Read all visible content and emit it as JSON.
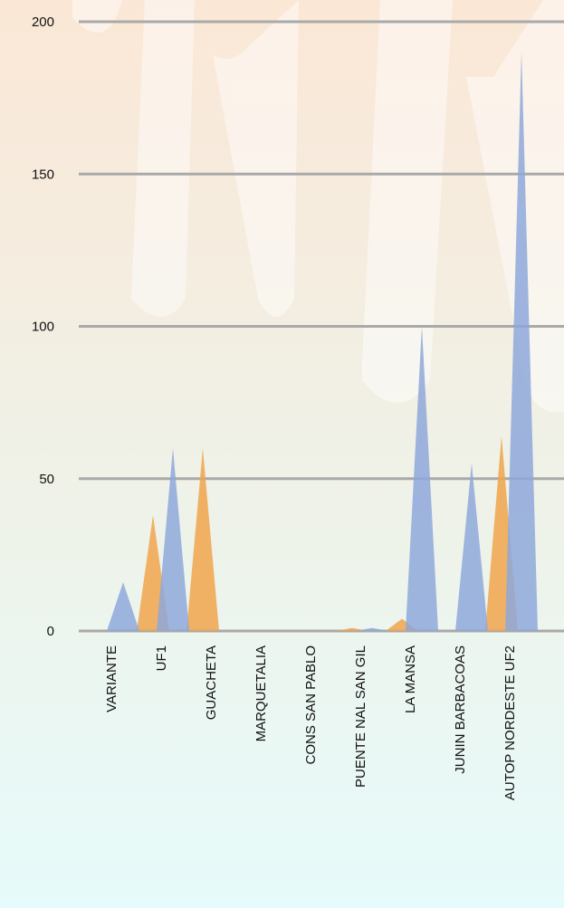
{
  "chart_data": {
    "type": "spike",
    "categories": [
      "VARIANTE",
      "UF1",
      "GUACHETA",
      "MARQUETALIA",
      "CONS SAN PABLO",
      "PUENTE NAL SAN GIL",
      "LA MANSA",
      "JUNIN BARBACOAS",
      "AUTOP NORDESTE UF2"
    ],
    "series": [
      {
        "color": "#f0a44c",
        "values": [
          0,
          38,
          60,
          0,
          0,
          1,
          4,
          0,
          64
        ]
      },
      {
        "color": "#8ea8db",
        "values": [
          16,
          60,
          0,
          0,
          0,
          1,
          100,
          55,
          190
        ]
      }
    ],
    "ylim": [
      0,
      200
    ],
    "yticks": [
      0,
      50,
      100,
      150,
      200
    ],
    "grid": true
  }
}
